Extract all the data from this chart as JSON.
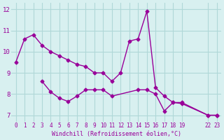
{
  "line1_x": [
    0,
    1,
    2,
    3,
    4,
    5,
    6,
    7,
    8,
    9,
    10,
    11,
    12,
    13,
    14,
    15,
    16,
    17,
    18,
    19,
    22,
    23
  ],
  "line1_y": [
    9.5,
    10.6,
    10.8,
    10.3,
    10.0,
    9.8,
    9.6,
    9.4,
    9.3,
    9.0,
    9.0,
    8.6,
    9.0,
    10.5,
    10.6,
    11.9,
    8.3,
    7.9,
    7.6,
    7.6,
    7.0,
    7.0
  ],
  "line2_x": [
    3,
    4,
    5,
    6,
    7,
    8,
    9,
    10,
    11,
    14,
    15,
    16,
    17,
    18,
    19,
    22,
    23
  ],
  "line2_y": [
    8.6,
    8.1,
    7.8,
    7.65,
    7.9,
    8.2,
    8.2,
    8.2,
    7.9,
    8.2,
    8.2,
    8.0,
    7.2,
    7.6,
    7.55,
    7.0,
    7.0
  ],
  "color": "#990099",
  "bg_color": "#d8f0f0",
  "grid_color": "#b0d8d8",
  "xlabel": "Windchill (Refroidissement éolien,°C)",
  "xticks": [
    0,
    1,
    2,
    3,
    4,
    5,
    6,
    7,
    8,
    9,
    10,
    11,
    12,
    13,
    14,
    15,
    16,
    17,
    18,
    19,
    22,
    23
  ],
  "xtick_labels": [
    "0",
    "1",
    "2",
    "3",
    "4",
    "5",
    "6",
    "7",
    "8",
    "9",
    "10",
    "11",
    "12",
    "13",
    "14",
    "15",
    "16",
    "17",
    "18",
    "19",
    "22",
    "23"
  ],
  "yticks": [
    7,
    8,
    9,
    10,
    11,
    12
  ],
  "ylim": [
    6.7,
    12.3
  ],
  "xlim": [
    -0.5,
    23.5
  ]
}
